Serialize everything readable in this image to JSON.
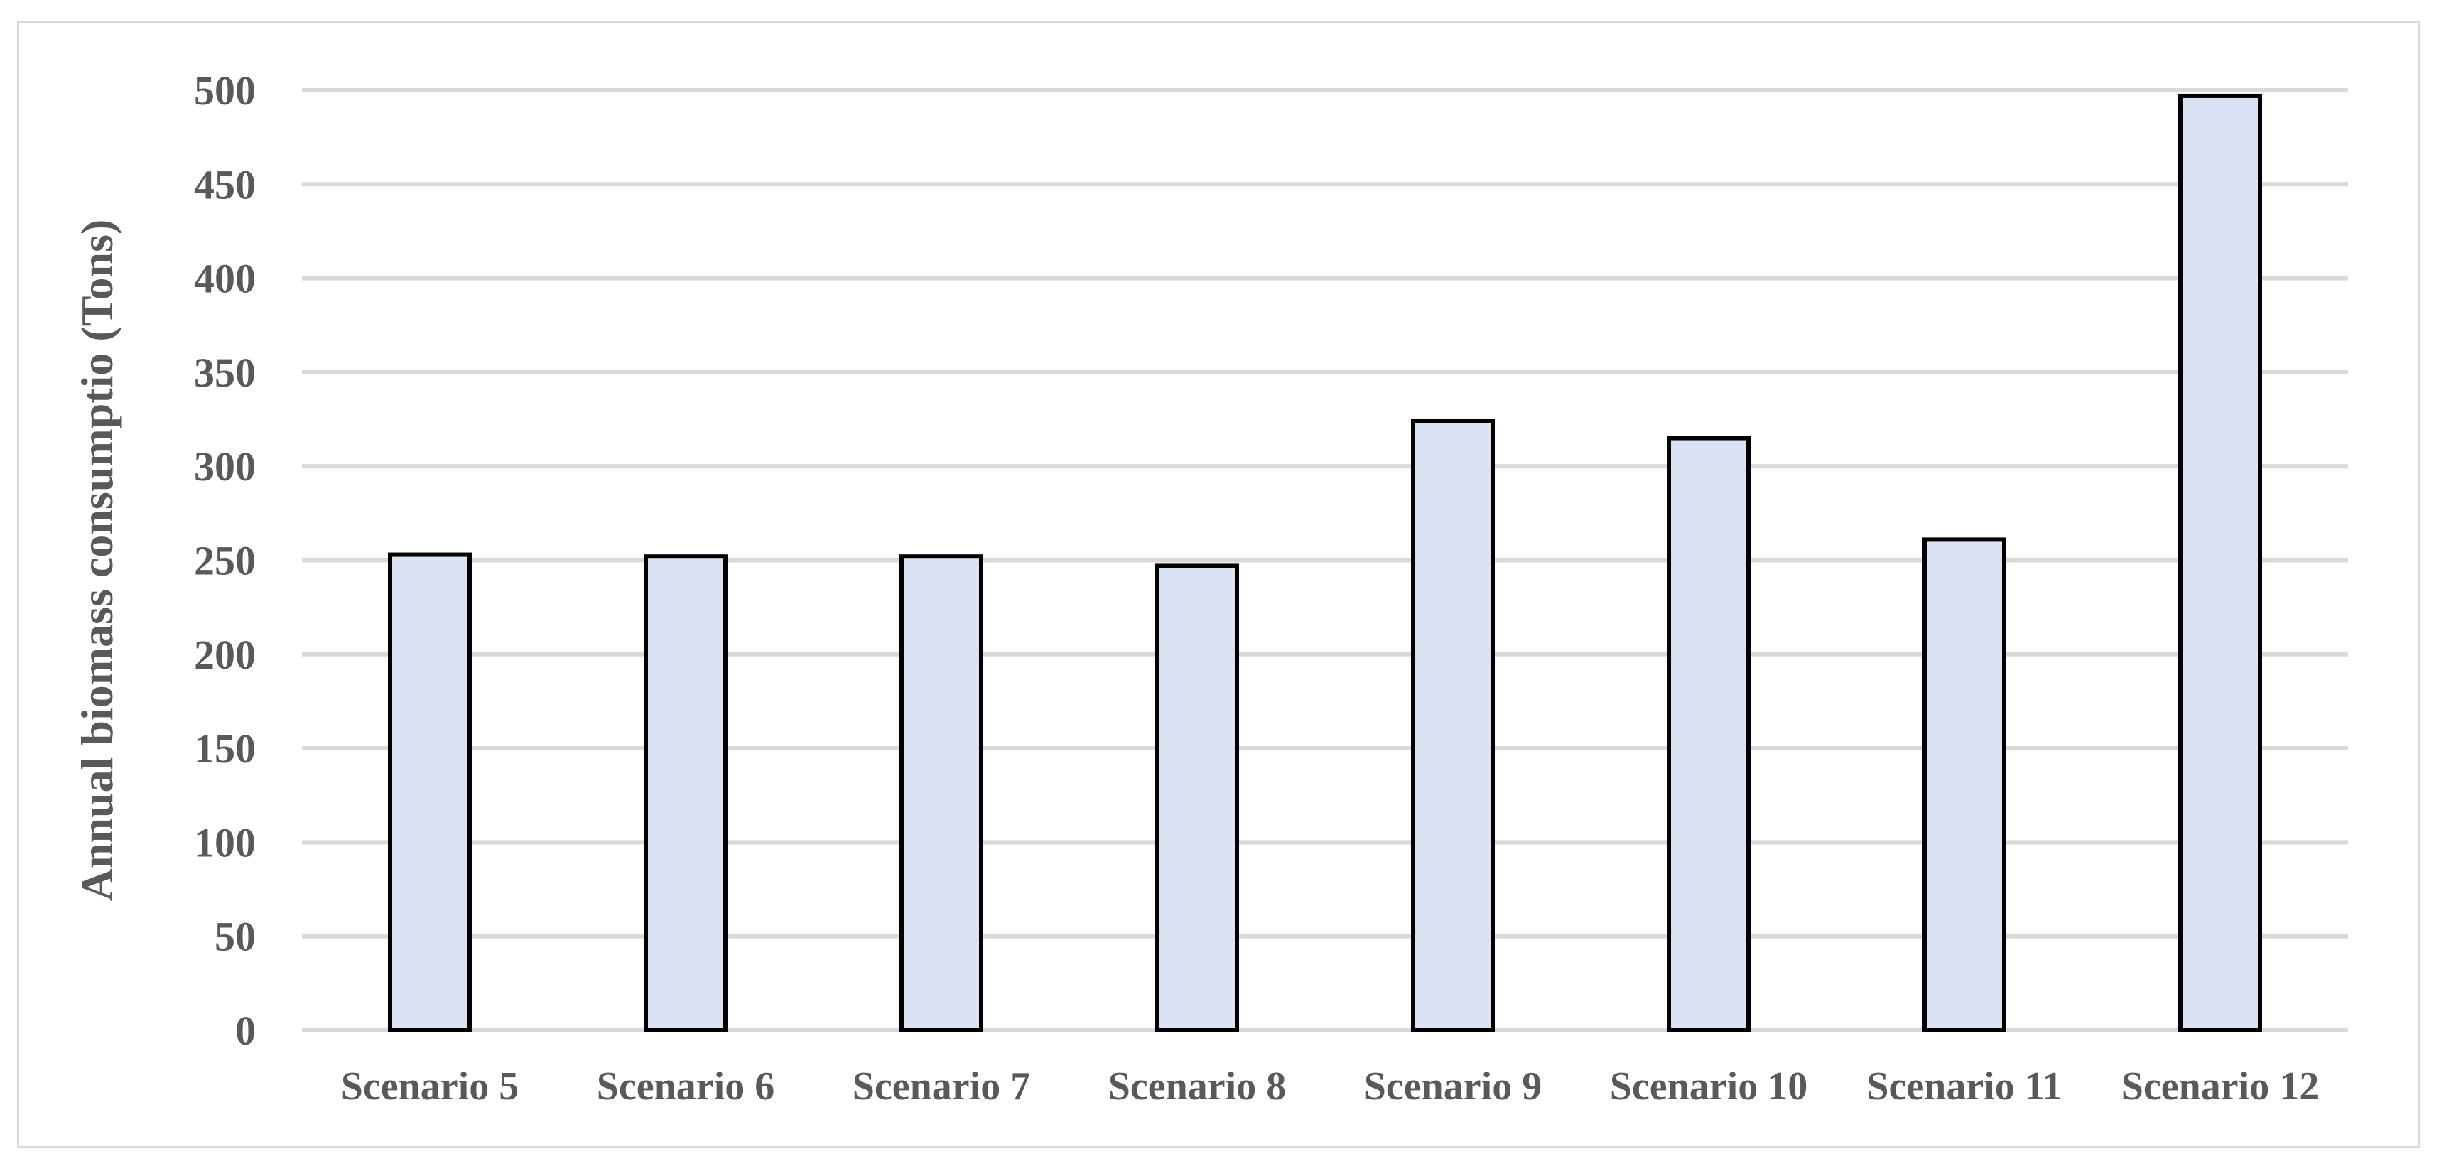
{
  "chart_data": {
    "type": "bar",
    "title": "",
    "xlabel": "",
    "ylabel": "Annual biomass consumptio (Tons)",
    "categories": [
      "Scenario 5",
      "Scenario 6",
      "Scenario 7",
      "Scenario 8",
      "Scenario 9",
      "Scenario 10",
      "Scenario 11",
      "Scenario 12"
    ],
    "series": [
      {
        "values": [
          253,
          252,
          252,
          247,
          324,
          315,
          261,
          497
        ]
      }
    ],
    "ylim": [
      0,
      500
    ],
    "yticks": [
      "0",
      "50",
      "100",
      "150",
      "200",
      "250",
      "300",
      "350",
      "400",
      "450",
      "500"
    ],
    "grid": true,
    "legend": "none",
    "colors": {
      "bar_fill": "#dae3f3",
      "bar_stroke": "#000000",
      "grid": "#d9d9d9",
      "text": "#595959"
    }
  }
}
